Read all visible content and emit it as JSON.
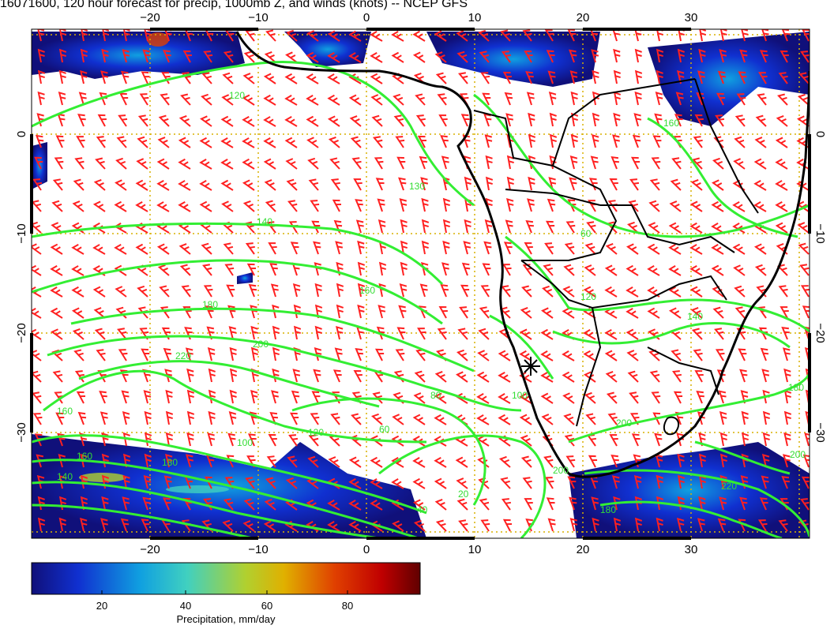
{
  "title": "16071600, 120 hour forecast for precip, 1000mb Z, and winds (knots) -- NCEP GFS",
  "map": {
    "lon_ticks": [
      "−20",
      "−10",
      "0",
      "10",
      "20",
      "30"
    ],
    "lat_ticks": [
      "0",
      "−10",
      "−20",
      "−30"
    ],
    "contour_labels": [
      "120",
      "130",
      "140",
      "160",
      "180",
      "200",
      "220",
      "180",
      "160",
      "140",
      "120",
      "100",
      "80",
      "60",
      "40",
      "20",
      "100",
      "120",
      "140",
      "160",
      "180",
      "200",
      "220",
      "180",
      "60",
      "200",
      "160",
      "200"
    ],
    "colors": {
      "contour": "#33ee33",
      "barb": "#ff2020",
      "coast": "#000000",
      "grid": "#d8b000"
    }
  },
  "colorbar": {
    "ticks": [
      "20",
      "40",
      "60",
      "80"
    ],
    "label": "Precipitation, mm/day",
    "stops": [
      "#10107a",
      "#1030d0",
      "#10a0e0",
      "#40d0c0",
      "#b0d030",
      "#e0b000",
      "#e04000",
      "#c00000",
      "#600000"
    ]
  }
}
